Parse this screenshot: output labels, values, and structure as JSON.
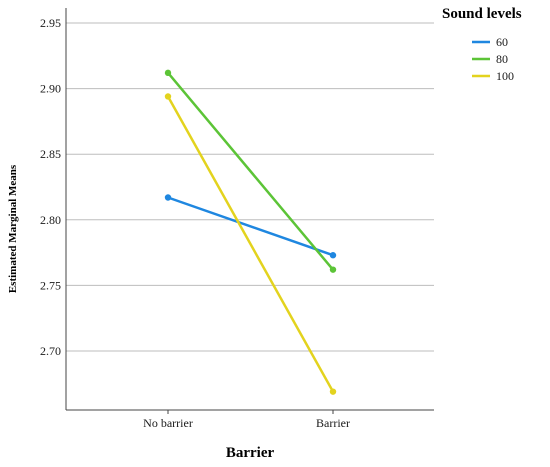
{
  "chart_data": {
    "type": "line",
    "xlabel": "Barrier",
    "ylabel": "Estimated Marginal Means",
    "categories": [
      "No barrier",
      "Barrier"
    ],
    "ylim": [
      2.65,
      2.96
    ],
    "yticks": [
      "2.70",
      "2.75",
      "2.80",
      "2.85",
      "2.90",
      "2.95"
    ],
    "grid": "horizontal",
    "legend": {
      "title": "Sound levels",
      "placement": "top-right"
    },
    "series": [
      {
        "name": "60",
        "color": "#1f87e0",
        "values": [
          2.817,
          2.773
        ]
      },
      {
        "name": "80",
        "color": "#5cc437",
        "values": [
          2.912,
          2.762
        ]
      },
      {
        "name": "100",
        "color": "#e3d31e",
        "values": [
          2.894,
          2.669
        ]
      }
    ]
  }
}
